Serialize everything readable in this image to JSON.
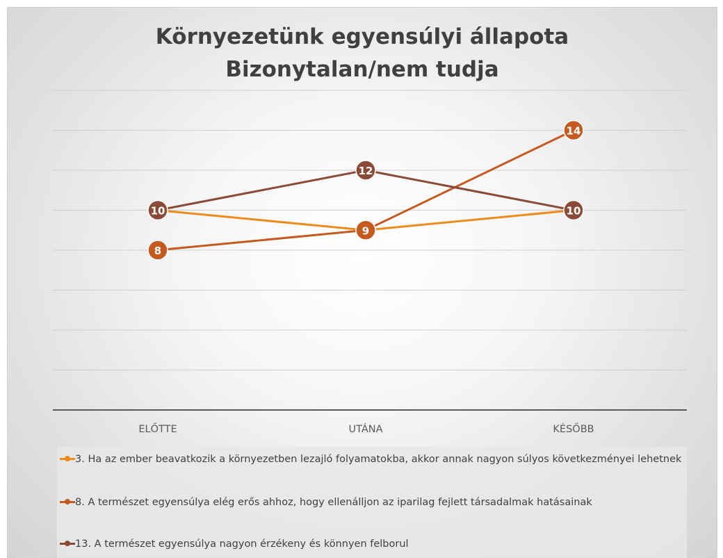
{
  "chart_data": {
    "type": "line",
    "title": "Környezetünk egyensúlyi állapota",
    "subtitle": "Bizonytalan/nem tudja",
    "categories": [
      "ELŐTTE",
      "UTÁNA",
      "KÉSŐBB"
    ],
    "ylim": [
      0,
      16
    ],
    "grid": true,
    "legend_position": "bottom",
    "series": [
      {
        "name": "3. Ha az ember beavatkozik a környezetben lezajló folyamatokba, akkor annak nagyon súlyos következményei lehetnek",
        "values": [
          10,
          9,
          10
        ],
        "color": "#ED8B1C"
      },
      {
        "name": "8. A természet egyensúlya elég erős ahhoz, hogy ellenálljon az iparilag fejlett társadalmak hatásainak",
        "values": [
          8,
          9,
          14
        ],
        "color": "#C55A20"
      },
      {
        "name": "13. A természet egyensúlya nagyon érzékeny és könnyen felborul",
        "values": [
          10,
          12,
          10
        ],
        "color": "#8B4A37"
      }
    ]
  }
}
